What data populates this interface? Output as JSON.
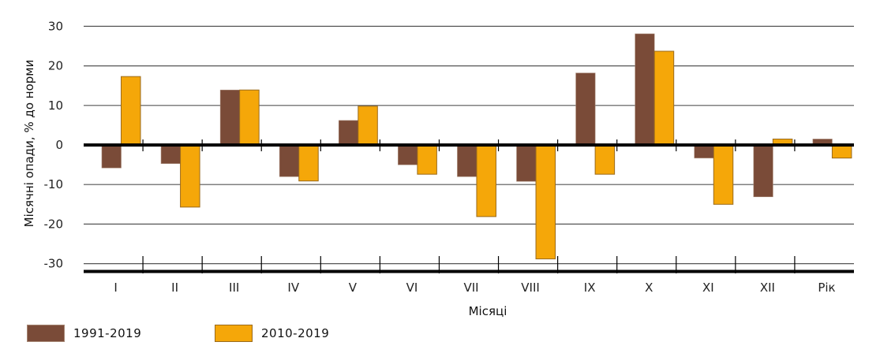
{
  "chart_data": {
    "type": "bar",
    "title": "",
    "xlabel": "Місяці",
    "ylabel": "Місячні опади, % до норми",
    "ylim": [
      -30,
      30
    ],
    "yticks": [
      30,
      20,
      10,
      0,
      -10,
      -20,
      -30
    ],
    "grid": true,
    "legend_position": "bottom-left",
    "categories": [
      "I",
      "II",
      "III",
      "IV",
      "V",
      "VI",
      "VII",
      "VIII",
      "IX",
      "X",
      "XI",
      "XII",
      "Рік"
    ],
    "series": [
      {
        "name": "1991-2019",
        "color": "#7a4b38",
        "values": [
          -5.8,
          -4.7,
          13.9,
          -8.0,
          6.2,
          -5.0,
          -8.0,
          -9.2,
          18.2,
          28.1,
          -3.3,
          -13.1,
          1.5
        ]
      },
      {
        "name": "2010-2019",
        "color": "#f5a709",
        "border": "#9a6a1c",
        "values": [
          17.3,
          -15.7,
          13.9,
          -9.1,
          9.8,
          -7.4,
          -18.1,
          -28.8,
          -7.4,
          23.7,
          -15.0,
          1.5,
          -3.3
        ]
      }
    ]
  }
}
